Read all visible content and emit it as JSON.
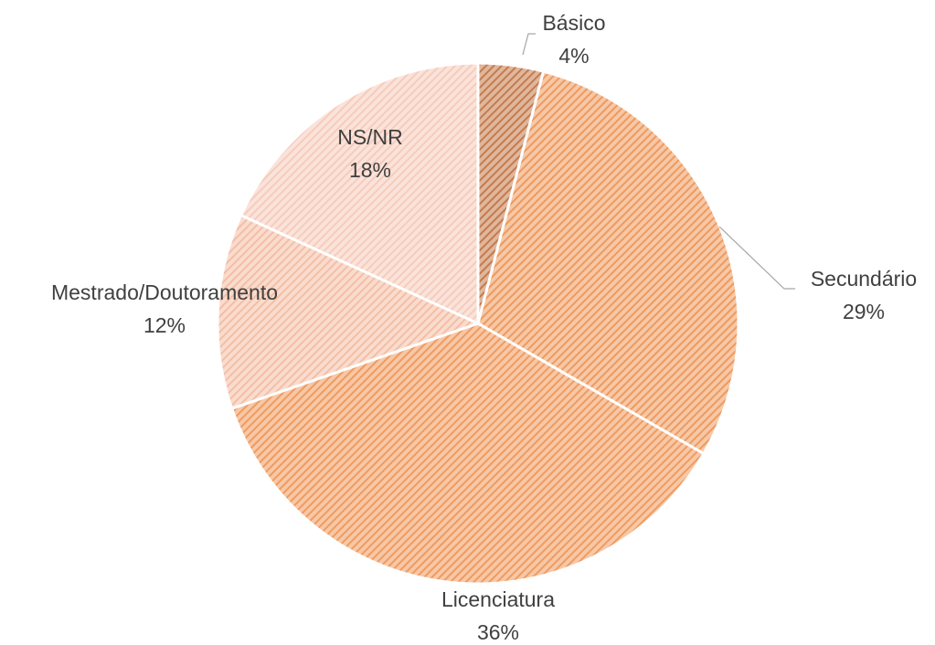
{
  "chart_data": {
    "type": "pie",
    "categories": [
      "Básico",
      "Secundário",
      "Licenciatura",
      "Mestrado/Doutoramento",
      "NS/NR"
    ],
    "values": [
      4,
      29,
      36,
      12,
      18
    ],
    "value_labels": [
      "4%",
      "29%",
      "36%",
      "12%",
      "18%"
    ],
    "colors": [
      "#c57b4d",
      "#ee9a5e",
      "#f09b5f",
      "#f4bea6",
      "#f6ccbc"
    ]
  }
}
